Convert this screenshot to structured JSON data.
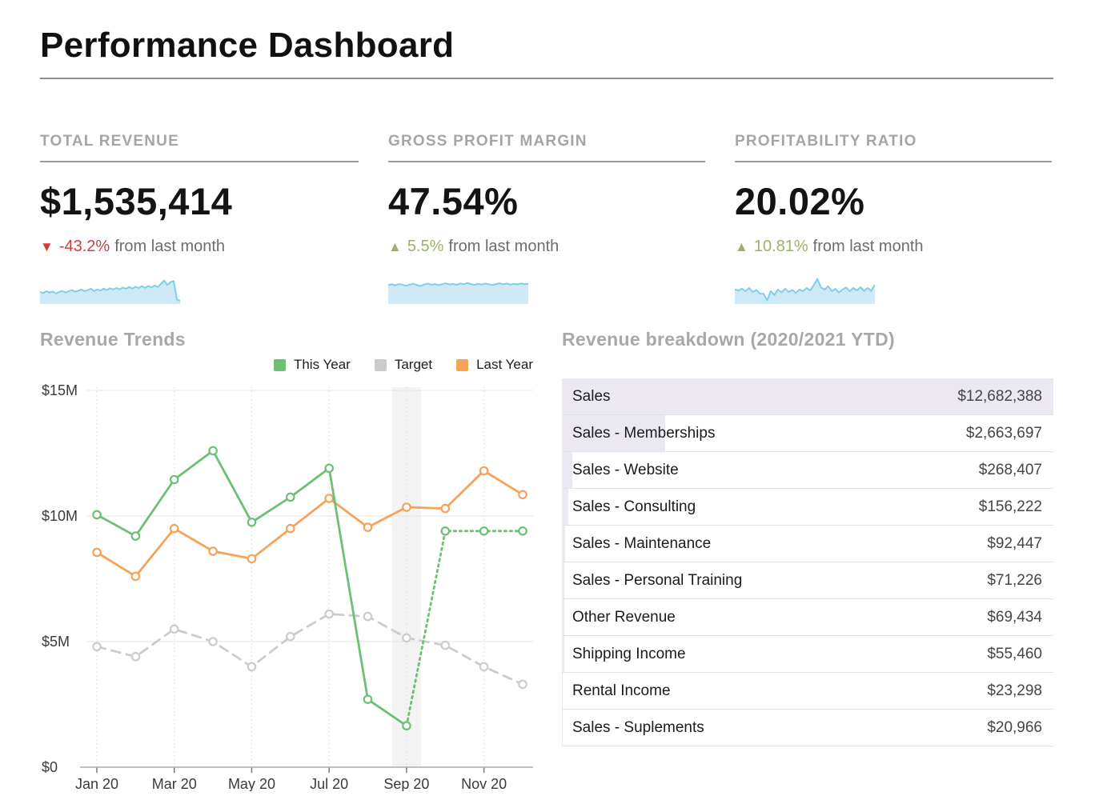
{
  "page": {
    "title": "Performance Dashboard"
  },
  "colors": {
    "spark_stroke": "#7ccfec",
    "spark_fill": "#cfeaf6",
    "grid": "#e6e6e6",
    "axis": "#ababab",
    "band": "#f3f3f3",
    "table_bar": "#ebe8f1",
    "negative": "#cf3e3e",
    "positive": "#9cb267"
  },
  "kpis": [
    {
      "label": "TOTAL REVENUE",
      "value": "$1,535,414",
      "delta": {
        "arrow": "▼",
        "direction": "down",
        "pct": "-43.2%",
        "suffix": "from last month",
        "color": "#cf3e3e"
      },
      "sparkline": [
        0.42,
        0.38,
        0.45,
        0.4,
        0.44,
        0.36,
        0.42,
        0.46,
        0.4,
        0.45,
        0.5,
        0.43,
        0.47,
        0.52,
        0.45,
        0.5,
        0.55,
        0.46,
        0.52,
        0.48,
        0.55,
        0.5,
        0.57,
        0.52,
        0.58,
        0.53,
        0.6,
        0.55,
        0.62,
        0.56,
        0.63,
        0.58,
        0.65,
        0.59,
        0.66,
        0.6,
        0.68,
        0.62,
        0.75,
        0.88,
        0.7,
        0.82,
        0.86,
        0.12,
        0.06
      ]
    },
    {
      "label": "GROSS PROFIT MARGIN",
      "value": "47.54%",
      "delta": {
        "arrow": "▲",
        "direction": "up",
        "pct": "5.5%",
        "suffix": "from last month",
        "color": "#9cb267"
      },
      "sparkline": [
        0.7,
        0.73,
        0.69,
        0.74,
        0.71,
        0.67,
        0.72,
        0.75,
        0.7,
        0.66,
        0.72,
        0.76,
        0.71,
        0.74,
        0.7,
        0.73,
        0.77,
        0.72,
        0.75,
        0.71,
        0.76,
        0.73,
        0.78,
        0.74,
        0.71,
        0.75,
        0.72,
        0.76,
        0.73,
        0.7,
        0.74,
        0.77,
        0.73,
        0.76,
        0.72,
        0.75,
        0.73,
        0.76,
        0.74,
        0.75
      ]
    },
    {
      "label": "PROFITABILITY RATIO",
      "value": "20.02%",
      "delta": {
        "arrow": "▲",
        "direction": "up",
        "pct": "10.81%",
        "suffix": "from last month",
        "color": "#9cb267"
      },
      "sparkline": [
        0.52,
        0.48,
        0.55,
        0.45,
        0.58,
        0.42,
        0.5,
        0.35,
        0.35,
        0.08,
        0.45,
        0.3,
        0.52,
        0.4,
        0.55,
        0.42,
        0.5,
        0.38,
        0.52,
        0.45,
        0.58,
        0.48,
        0.7,
        0.95,
        0.6,
        0.52,
        0.65,
        0.45,
        0.55,
        0.4,
        0.52,
        0.6,
        0.45,
        0.58,
        0.48,
        0.62,
        0.46,
        0.58,
        0.46,
        0.72
      ]
    }
  ],
  "sections": {
    "trends_heading": "Revenue Trends",
    "breakdown_heading": "Revenue breakdown (2020/2021 YTD)"
  },
  "chart_data": [
    {
      "type": "line",
      "title": "Revenue Trends",
      "unit": "millions USD",
      "x": [
        "Jan 20",
        "Feb 20",
        "Mar 20",
        "Apr 20",
        "May 20",
        "Jun 20",
        "Jul 20",
        "Aug 20",
        "Sep 20",
        "Oct 20",
        "Nov 20",
        "Dec 20"
      ],
      "x_tick_indices": [
        0,
        2,
        4,
        6,
        8,
        10
      ],
      "ylim": [
        0,
        15
      ],
      "y_ticks": [
        {
          "value": 15,
          "label": "$15M"
        },
        {
          "value": 10,
          "label": "$10M"
        },
        {
          "value": 5,
          "label": "$5M"
        },
        {
          "value": 0,
          "label": "$0"
        }
      ],
      "grid": true,
      "legend_position": "top-right",
      "highlight_band": {
        "x_label": "Sep 20",
        "x_index": 8
      },
      "series": [
        {
          "name": "This Year",
          "color": "#6dbf74",
          "style": "solid",
          "dotted_from_index": 8,
          "values": [
            10.05,
            9.2,
            11.45,
            12.6,
            9.75,
            10.75,
            11.9,
            2.7,
            1.65,
            9.4,
            9.4,
            9.4
          ]
        },
        {
          "name": "Target",
          "color": "#cccccc",
          "style": "dashed",
          "values": [
            4.8,
            4.4,
            5.5,
            5.0,
            4.0,
            5.2,
            6.1,
            6.0,
            5.15,
            4.85,
            4.0,
            3.3
          ]
        },
        {
          "name": "Last Year",
          "color": "#f3a45a",
          "style": "solid",
          "values": [
            8.55,
            7.6,
            9.5,
            8.6,
            8.3,
            9.5,
            10.7,
            9.55,
            10.35,
            10.3,
            11.8,
            10.85
          ]
        }
      ]
    },
    {
      "type": "table",
      "title": "Revenue breakdown (2020/2021 YTD)",
      "rows": [
        {
          "label": "Sales",
          "value": "$12,682,388"
        },
        {
          "label": "Sales - Memberships",
          "value": "$2,663,697"
        },
        {
          "label": "Sales - Website",
          "value": "$268,407"
        },
        {
          "label": "Sales - Consulting",
          "value": "$156,222"
        },
        {
          "label": "Sales - Maintenance",
          "value": "$92,447"
        },
        {
          "label": "Sales - Personal Training",
          "value": "$71,226"
        },
        {
          "label": "Other Revenue",
          "value": "$69,434"
        },
        {
          "label": "Shipping Income",
          "value": "$55,460"
        },
        {
          "label": "Rental Income",
          "value": "$23,298"
        },
        {
          "label": "Sales - Suplements",
          "value": "$20,966"
        }
      ]
    }
  ]
}
